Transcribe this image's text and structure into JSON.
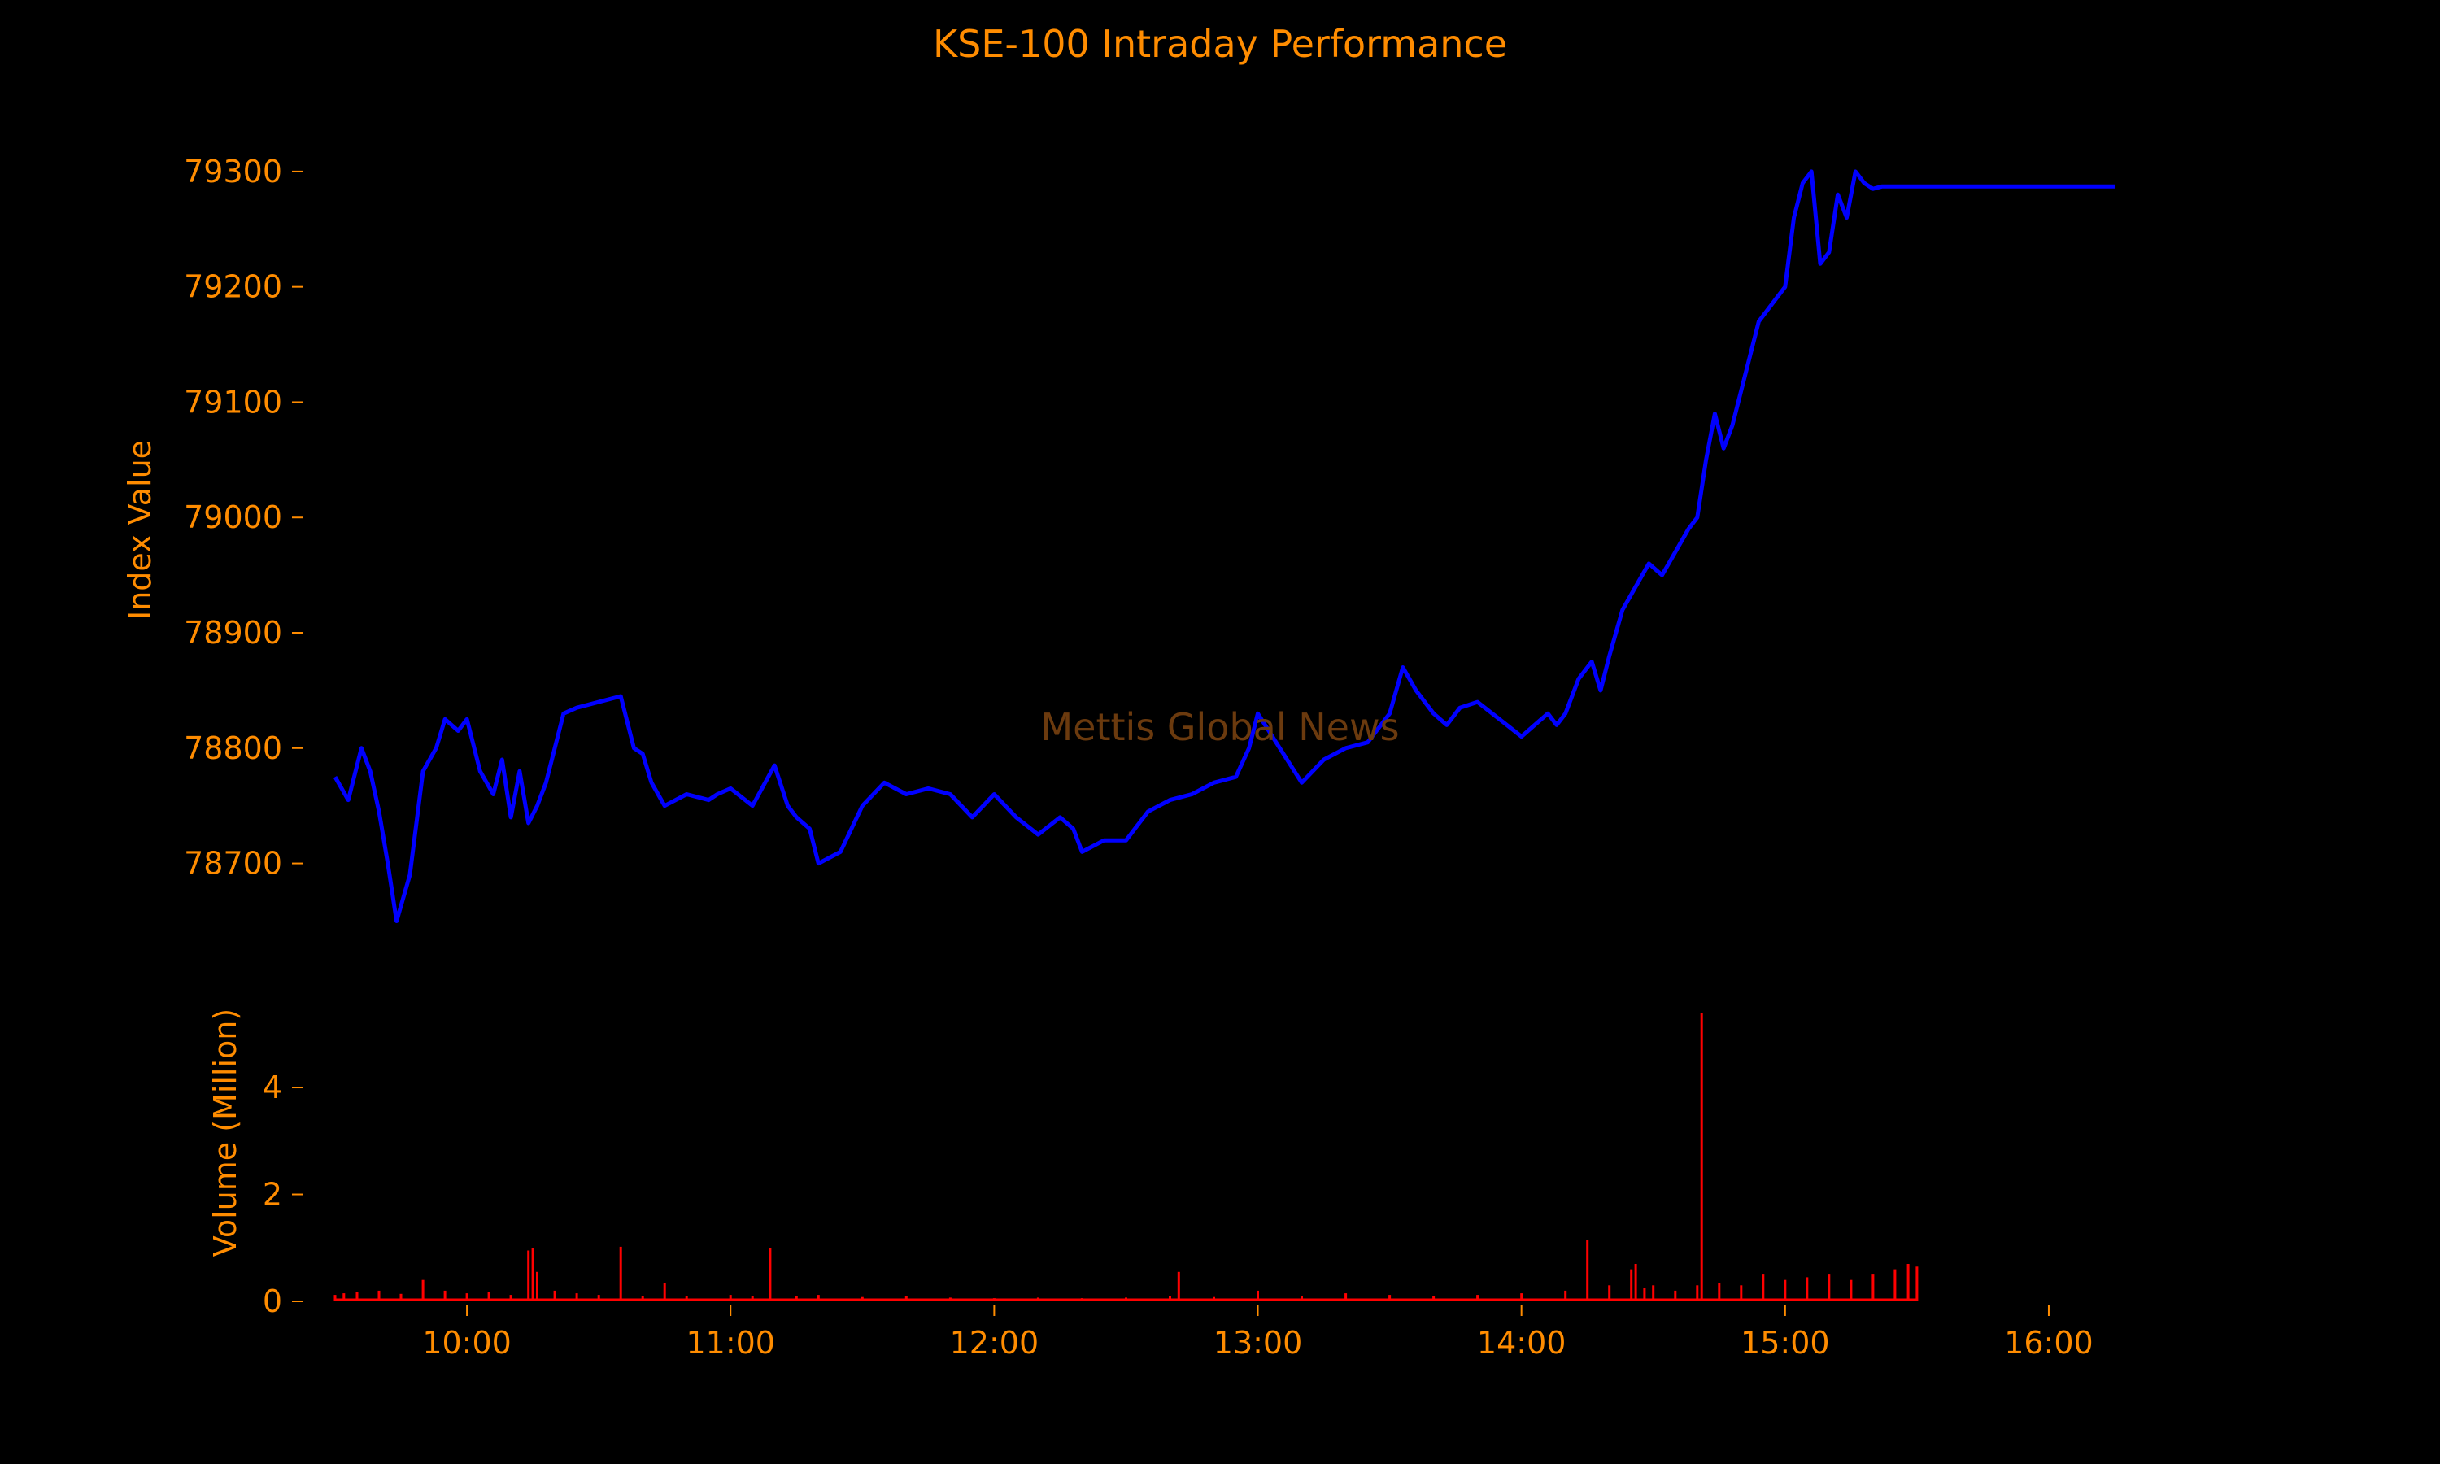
{
  "chart_data": {
    "title": "KSE-100 Intraday Performance",
    "watermark": "Mettis Global News",
    "type": "line",
    "panels": [
      {
        "name": "price",
        "type": "line",
        "ylabel": "Index Value",
        "ylim": [
          78620,
          79350
        ],
        "yticks": [
          78700,
          78800,
          78900,
          79000,
          79100,
          79200,
          79300
        ],
        "ytick_labels": [
          "78700",
          "78800",
          "78900",
          "79000",
          "79100",
          "79200",
          "79300"
        ],
        "series": [
          {
            "color": "#0000ff",
            "x": [
              "09:30",
              "09:33",
              "09:36",
              "09:38",
              "09:40",
              "09:42",
              "09:44",
              "09:47",
              "09:50",
              "09:53",
              "09:55",
              "09:58",
              "10:00",
              "10:03",
              "10:06",
              "10:08",
              "10:10",
              "10:12",
              "10:14",
              "10:16",
              "10:18",
              "10:20",
              "10:22",
              "10:25",
              "10:30",
              "10:35",
              "10:38",
              "10:40",
              "10:42",
              "10:45",
              "10:50",
              "10:55",
              "10:57",
              "11:00",
              "11:05",
              "11:10",
              "11:13",
              "11:15",
              "11:18",
              "11:20",
              "11:25",
              "11:30",
              "11:35",
              "11:40",
              "11:45",
              "11:50",
              "11:55",
              "12:00",
              "12:05",
              "12:10",
              "12:15",
              "12:18",
              "12:20",
              "12:25",
              "12:30",
              "12:35",
              "12:40",
              "12:45",
              "12:50",
              "12:55",
              "12:58",
              "13:00",
              "13:05",
              "13:10",
              "13:15",
              "13:20",
              "13:25",
              "13:30",
              "13:33",
              "13:36",
              "13:40",
              "13:43",
              "13:46",
              "13:50",
              "13:55",
              "14:00",
              "14:03",
              "14:06",
              "14:08",
              "14:10",
              "14:13",
              "14:16",
              "14:18",
              "14:20",
              "14:23",
              "14:26",
              "14:29",
              "14:32",
              "14:35",
              "14:38",
              "14:40",
              "14:42",
              "14:44",
              "14:46",
              "14:48",
              "14:50",
              "14:52",
              "14:54",
              "14:56",
              "14:58",
              "15:00",
              "15:02",
              "15:04",
              "15:06",
              "15:08",
              "15:10",
              "15:12",
              "15:14",
              "15:16",
              "15:18",
              "15:20",
              "15:22",
              "15:24",
              "15:26",
              "15:28",
              "15:30",
              "15:45",
              "16:00",
              "16:15"
            ],
            "y": [
              78775,
              78755,
              78800,
              78780,
              78745,
              78700,
              78650,
              78690,
              78780,
              78800,
              78825,
              78815,
              78825,
              78780,
              78760,
              78790,
              78740,
              78780,
              78735,
              78750,
              78770,
              78800,
              78830,
              78835,
              78840,
              78845,
              78800,
              78795,
              78770,
              78750,
              78760,
              78755,
              78760,
              78765,
              78750,
              78785,
              78750,
              78740,
              78730,
              78700,
              78710,
              78750,
              78770,
              78760,
              78765,
              78760,
              78740,
              78760,
              78740,
              78725,
              78740,
              78730,
              78710,
              78720,
              78720,
              78745,
              78755,
              78760,
              78770,
              78775,
              78800,
              78830,
              78800,
              78770,
              78790,
              78800,
              78805,
              78830,
              78870,
              78850,
              78830,
              78820,
              78835,
              78840,
              78825,
              78810,
              78820,
              78830,
              78820,
              78830,
              78860,
              78875,
              78850,
              78880,
              78920,
              78940,
              78960,
              78950,
              78970,
              78990,
              79000,
              79050,
              79090,
              79060,
              79080,
              79110,
              79140,
              79170,
              79180,
              79190,
              79200,
              79260,
              79290,
              79300,
              79220,
              79230,
              79280,
              79260,
              79300,
              79290,
              79285,
              79287,
              79287,
              79287,
              79287,
              79287,
              79287,
              79287,
              79287
            ]
          }
        ]
      },
      {
        "name": "volume",
        "type": "bar",
        "ylabel": "Volume (Million)",
        "ylim": [
          0,
          5.4
        ],
        "yticks": [
          0,
          2,
          4
        ],
        "ytick_labels": [
          "0",
          "2",
          "4"
        ],
        "series": [
          {
            "color": "#ff0000",
            "x": [
              "09:30",
              "09:32",
              "09:35",
              "09:40",
              "09:45",
              "09:50",
              "09:55",
              "10:00",
              "10:05",
              "10:10",
              "10:14",
              "10:15",
              "10:16",
              "10:20",
              "10:25",
              "10:30",
              "10:35",
              "10:40",
              "10:45",
              "10:50",
              "11:00",
              "11:05",
              "11:09",
              "11:15",
              "11:20",
              "11:30",
              "11:40",
              "11:50",
              "12:00",
              "12:10",
              "12:20",
              "12:30",
              "12:40",
              "12:42",
              "12:50",
              "13:00",
              "13:10",
              "13:20",
              "13:30",
              "13:40",
              "13:50",
              "14:00",
              "14:10",
              "14:15",
              "14:20",
              "14:25",
              "14:26",
              "14:28",
              "14:30",
              "14:35",
              "14:40",
              "14:41",
              "14:45",
              "14:50",
              "14:55",
              "15:00",
              "15:05",
              "15:10",
              "15:15",
              "15:20",
              "15:25",
              "15:28",
              "15:30"
            ],
            "y": [
              0.12,
              0.15,
              0.18,
              0.2,
              0.14,
              0.4,
              0.2,
              0.15,
              0.18,
              0.12,
              0.95,
              1.0,
              0.55,
              0.2,
              0.15,
              0.12,
              1.02,
              0.1,
              0.35,
              0.1,
              0.12,
              0.1,
              1.0,
              0.1,
              0.12,
              0.08,
              0.1,
              0.07,
              0.06,
              0.07,
              0.06,
              0.07,
              0.1,
              0.55,
              0.08,
              0.2,
              0.1,
              0.15,
              0.12,
              0.1,
              0.12,
              0.15,
              0.2,
              1.15,
              0.3,
              0.6,
              0.7,
              0.25,
              0.3,
              0.2,
              0.3,
              5.4,
              0.35,
              0.3,
              0.5,
              0.4,
              0.45,
              0.5,
              0.4,
              0.5,
              0.6,
              0.7,
              0.65
            ]
          }
        ]
      }
    ],
    "xaxis": {
      "range": [
        "09:25",
        "16:15"
      ],
      "ticks": [
        "10:00",
        "11:00",
        "12:00",
        "13:00",
        "14:00",
        "15:00",
        "16:00"
      ],
      "tick_labels": [
        "10:00",
        "11:00",
        "12:00",
        "13:00",
        "14:00",
        "15:00",
        "16:00"
      ]
    },
    "grid": false,
    "legend": false,
    "colors": {
      "background": "#000000",
      "text": "#ff8c00",
      "price_line": "#0000ff",
      "volume_bars": "#ff0000",
      "watermark": "#6b3a0e"
    }
  }
}
